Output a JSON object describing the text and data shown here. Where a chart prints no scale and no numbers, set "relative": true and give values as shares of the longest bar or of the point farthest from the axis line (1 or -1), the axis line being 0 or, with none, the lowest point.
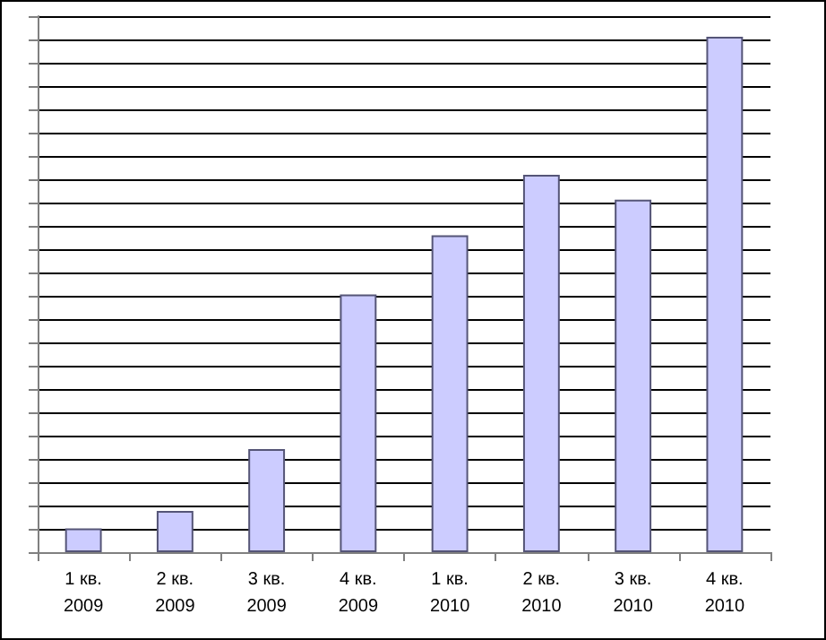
{
  "chart_data": {
    "type": "bar",
    "relative": true,
    "grid": "y",
    "categories": [
      "1 кв.\n2009",
      "2 кв.\n2009",
      "3 кв.\n2009",
      "4 кв.\n2009",
      "1 кв.\n2010",
      "2 кв.\n2010",
      "3 кв.\n2010",
      "4 кв.\n2010"
    ],
    "values": [
      0.046,
      0.08,
      0.2,
      0.5,
      0.615,
      0.732,
      0.684,
      1
    ],
    "color": "#ccccff"
  }
}
